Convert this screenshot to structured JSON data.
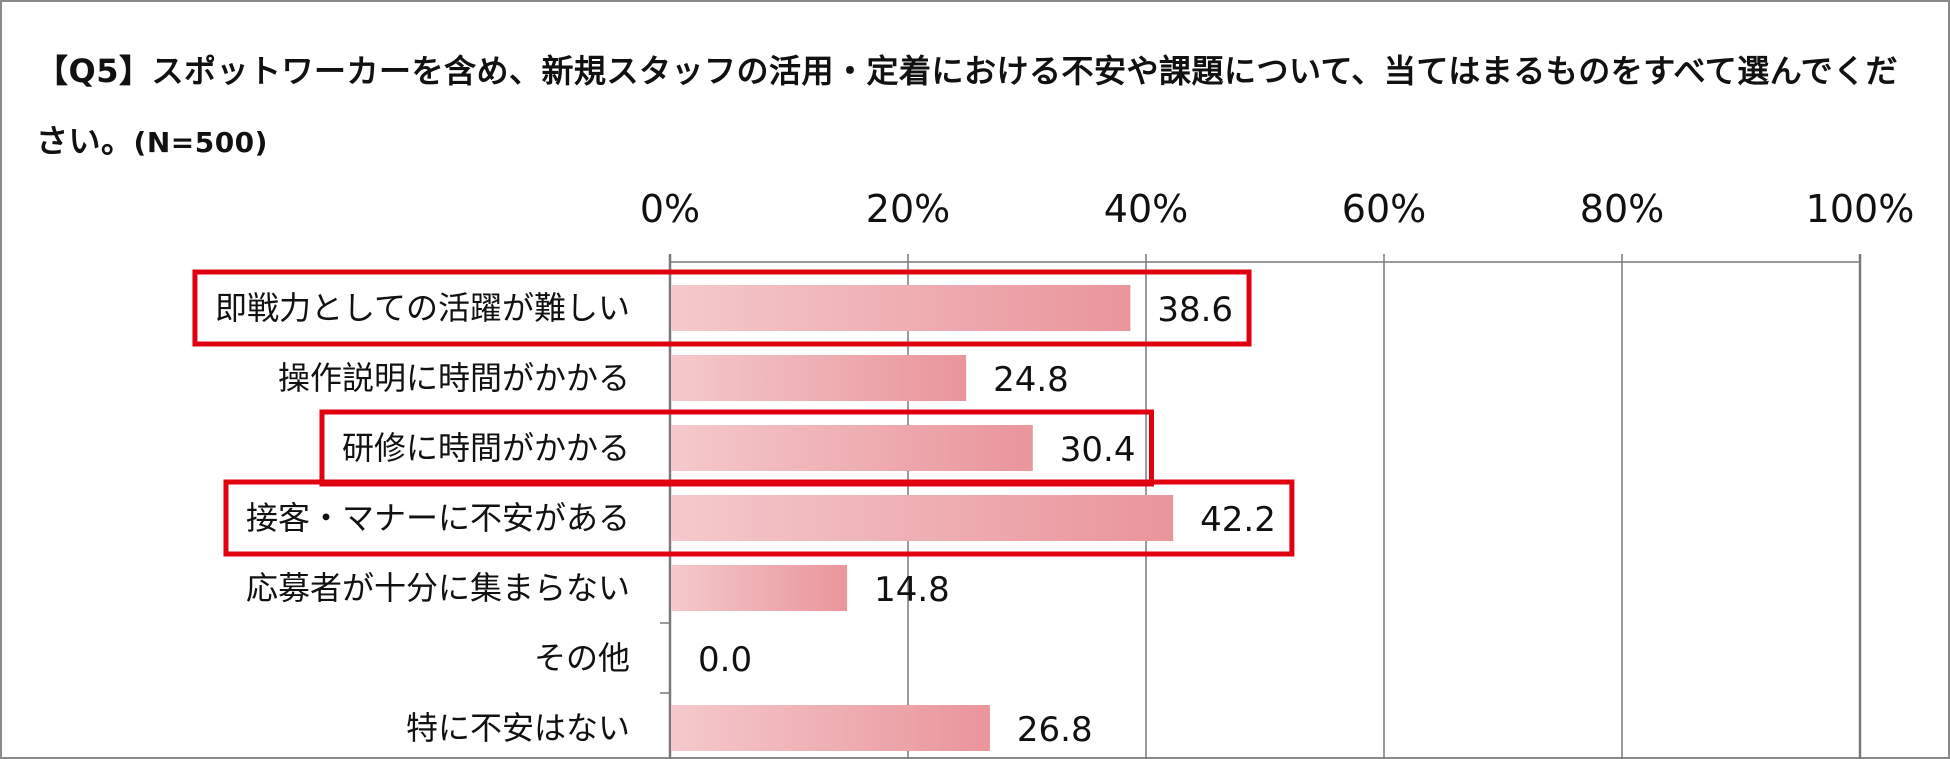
{
  "title": {
    "text": "【Q5】スポットワーカーを含め、新規スタッフの活用・定着における不安や課題について、当てはまるものをすべて選んでください。",
    "sample": "(N=500)"
  },
  "chart_data": {
    "type": "bar",
    "orientation": "horizontal",
    "categories": [
      "即戦力としての活躍が難しい",
      "操作説明に時間がかかる",
      "研修に時間がかかる",
      "接客・マナーに不安がある",
      "応募者が十分に集まらない",
      "その他",
      "特に不安はない"
    ],
    "values": [
      38.6,
      24.8,
      30.4,
      42.2,
      14.8,
      0.0,
      26.8
    ],
    "value_labels": [
      "38.6",
      "24.8",
      "30.4",
      "42.2",
      "14.8",
      "0.0",
      "26.8"
    ],
    "xlim": [
      0,
      100
    ],
    "x_ticks": [
      "0%",
      "20%",
      "40%",
      "60%",
      "80%",
      "100%"
    ],
    "x_tick_values": [
      0,
      20,
      40,
      60,
      80,
      100
    ],
    "axis_position": "top",
    "grid": true,
    "highlighted": [
      true,
      false,
      true,
      true,
      false,
      false,
      false
    ],
    "colors": {
      "bar_start": "#f4c9cc",
      "bar_end": "#e9959b",
      "highlight": "#e00010",
      "grid": "#7a7a7a"
    }
  }
}
